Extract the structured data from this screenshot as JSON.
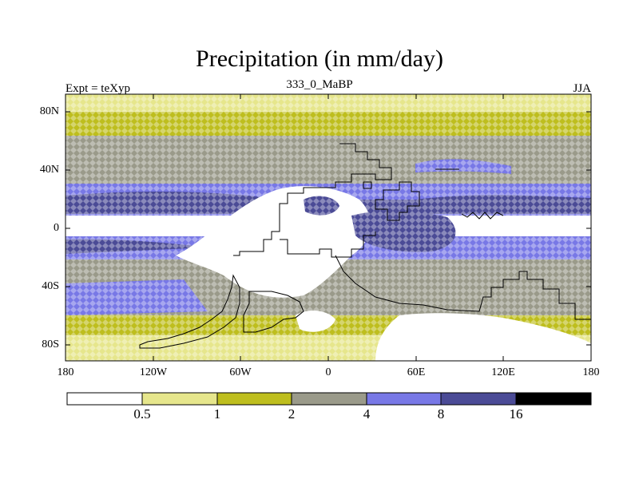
{
  "title": "Precipitation (in mm/day)",
  "subtitle_left": "Expt = teXyp",
  "subtitle_center": "333_0_MaBP",
  "subtitle_right": "JJA",
  "lat_labels": [
    "80N",
    "40N",
    "0",
    "40S",
    "80S"
  ],
  "lon_labels": [
    "180",
    "120W",
    "60W",
    "0",
    "60E",
    "120E",
    "180"
  ],
  "colorbar": {
    "labels": [
      "0.5",
      "1",
      "2",
      "4",
      "8",
      "16"
    ],
    "colors": [
      "#ffffff",
      "#e6e68c",
      "#bebe1e",
      "#9a9a8a",
      "#7878e6",
      "#4b4b96",
      "#000000"
    ]
  },
  "chart_data": {
    "type": "heatmap",
    "title": "Precipitation (in mm/day)",
    "xlabel": "",
    "ylabel": "",
    "xlim": [
      -180,
      180
    ],
    "ylim": [
      -90,
      90
    ],
    "levels": [
      0.5,
      1,
      2,
      4,
      8,
      16
    ]
  }
}
